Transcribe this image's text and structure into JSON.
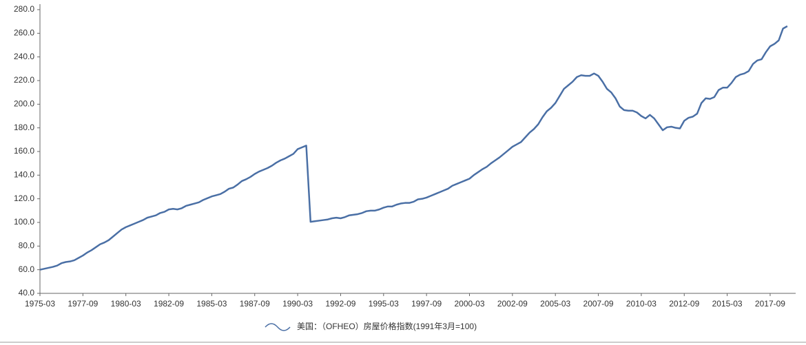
{
  "chart_data": {
    "type": "line",
    "categories": [
      "1975-03",
      null,
      null,
      null,
      null,
      null,
      null,
      null,
      null,
      null,
      "1977-09",
      null,
      null,
      null,
      null,
      null,
      null,
      null,
      null,
      null,
      "1980-03",
      null,
      null,
      null,
      null,
      null,
      null,
      null,
      null,
      null,
      "1982-09",
      null,
      null,
      null,
      null,
      null,
      null,
      null,
      null,
      null,
      "1985-03",
      null,
      null,
      null,
      null,
      null,
      null,
      null,
      null,
      null,
      "1987-09",
      null,
      null,
      null,
      null,
      null,
      null,
      null,
      null,
      null,
      "1990-03",
      null,
      null,
      null,
      null,
      null,
      null,
      null,
      null,
      null,
      "1992-09",
      null,
      null,
      null,
      null,
      null,
      null,
      null,
      null,
      null,
      "1995-03",
      null,
      null,
      null,
      null,
      null,
      null,
      null,
      null,
      null,
      "1997-09",
      null,
      null,
      null,
      null,
      null,
      null,
      null,
      null,
      null,
      "2000-03",
      null,
      null,
      null,
      null,
      null,
      null,
      null,
      null,
      null,
      "2002-09",
      null,
      null,
      null,
      null,
      null,
      null,
      null,
      null,
      null,
      "2005-03",
      null,
      null,
      null,
      null,
      null,
      null,
      null,
      null,
      null,
      "2007-09",
      null,
      null,
      null,
      null,
      null,
      null,
      null,
      null,
      null,
      "2010-03",
      null,
      null,
      null,
      null,
      null,
      null,
      null,
      null,
      null,
      "2012-09",
      null,
      null,
      null,
      null,
      null,
      null,
      null,
      null,
      null,
      "2015-03",
      null,
      null,
      null,
      null,
      null,
      null,
      null,
      null,
      null,
      "2017-09",
      null,
      null,
      null,
      null
    ],
    "series": [
      {
        "name": "美国：（OFHEO）房屋价格指数(1991年3月=100)",
        "color": "#4a6fa5",
        "values": [
          60,
          60.8,
          61.6,
          62.4,
          63.5,
          65.5,
          66.5,
          67,
          68,
          70,
          72,
          74.5,
          76.5,
          79,
          81.5,
          83,
          85,
          88,
          91,
          94,
          96,
          97.5,
          99,
          100.5,
          102,
          104,
          105,
          106,
          108,
          109,
          111,
          111.5,
          111,
          112,
          114,
          115,
          116,
          117,
          119,
          120.5,
          122,
          123,
          124,
          126,
          128.5,
          129.5,
          132,
          135,
          136.5,
          138.5,
          141,
          143,
          144.5,
          146,
          148,
          150.5,
          152.5,
          154,
          156,
          158,
          162,
          163.5,
          165,
          100.5,
          101,
          101.5,
          102,
          102.5,
          103.5,
          104,
          103.5,
          104.5,
          106,
          106.5,
          107,
          108,
          109.5,
          110,
          110,
          111,
          112.5,
          113.5,
          113.5,
          115,
          116,
          116.5,
          116.5,
          117.5,
          119.5,
          120,
          121,
          122.5,
          124,
          125.5,
          127,
          128.5,
          131,
          132.5,
          134,
          135.5,
          137,
          140,
          142.5,
          145,
          147,
          150,
          152.5,
          155,
          158,
          161,
          164,
          166,
          168,
          172,
          176,
          179,
          183,
          189,
          194,
          197,
          201,
          207,
          213,
          216,
          219,
          223,
          224.5,
          224,
          224,
          226,
          224,
          219,
          213,
          210,
          205,
          198,
          195,
          194.5,
          194.5,
          193,
          190,
          188,
          191,
          188,
          183,
          178,
          180.5,
          181,
          180,
          179.5,
          186,
          188.5,
          189.5,
          192,
          201,
          205,
          204.5,
          206,
          212,
          214,
          214,
          218,
          223,
          225,
          226,
          228,
          234,
          237,
          238,
          244,
          249,
          251,
          254,
          264,
          266
        ]
      }
    ],
    "ylim": [
      40,
      280
    ],
    "yticks": [
      {
        "value": 40,
        "label": "40.0"
      },
      {
        "value": 60,
        "label": "60.0"
      },
      {
        "value": 80,
        "label": "80.0"
      },
      {
        "value": 100,
        "label": "100.0"
      },
      {
        "value": 120,
        "label": "120.0"
      },
      {
        "value": 140,
        "label": "140.0"
      },
      {
        "value": 160,
        "label": "160.0"
      },
      {
        "value": 180,
        "label": "180.0"
      },
      {
        "value": 200,
        "label": "200.0"
      },
      {
        "value": 220,
        "label": "220.0"
      },
      {
        "value": 240,
        "label": "240.0"
      },
      {
        "value": 260,
        "label": "260.0"
      },
      {
        "value": 280,
        "label": "280.0"
      }
    ],
    "legend": "bottom"
  }
}
